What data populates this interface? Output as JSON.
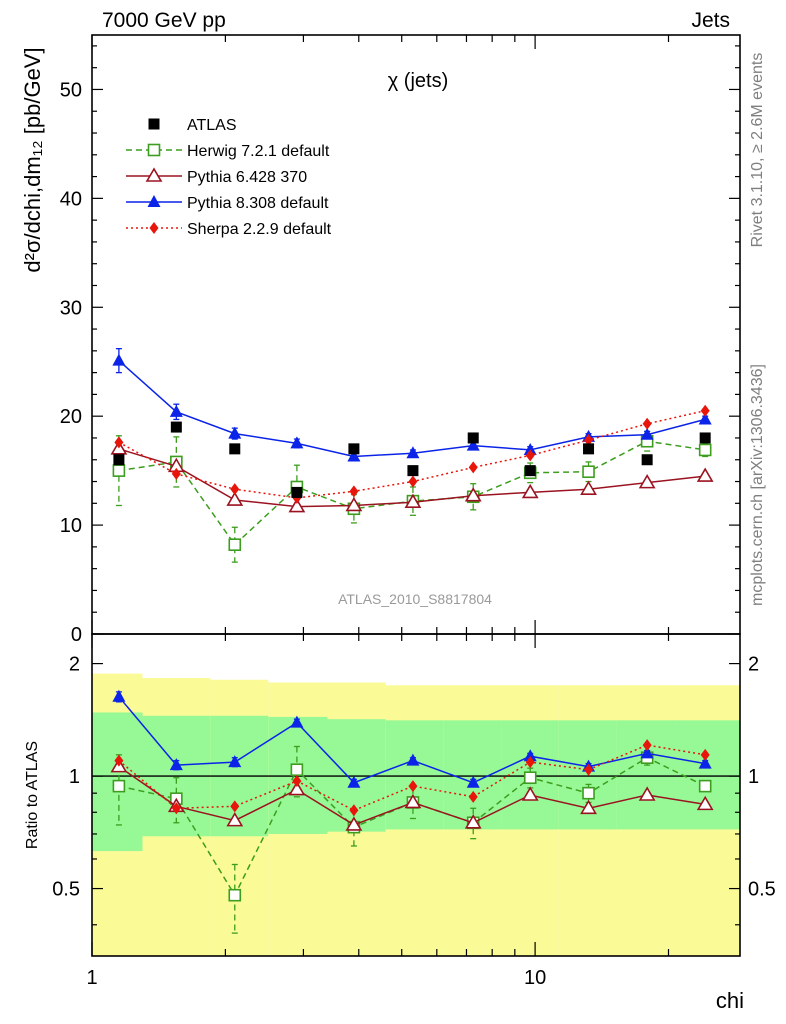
{
  "header": {
    "left": "7000 GeV pp",
    "right": "Jets"
  },
  "side_labels": {
    "rivet": "Rivet 3.1.10, ≥ 2.6M events",
    "mcplots": "mcplots.cern.ch [arXiv:1306.3436]"
  },
  "analysis_label": "ATLAS_2010_S8817804",
  "chart_data": [
    {
      "type": "scatter",
      "panel": "main",
      "title": "χ (jets)",
      "ylabel": "d²σ/dchi,dm₁₂ [pb/GeV]",
      "xscale": "log",
      "xlim": [
        1,
        29
      ],
      "ylim": [
        0,
        55
      ],
      "yticks": [
        0,
        10,
        20,
        30,
        40,
        50
      ],
      "legend_placement": "top-left",
      "x": [
        1.15,
        1.55,
        2.1,
        2.9,
        3.9,
        5.3,
        7.25,
        9.75,
        13.2,
        17.9,
        24.2
      ],
      "series": [
        {
          "name": "ATLAS",
          "style": "data",
          "color": "#000000",
          "values": [
            16,
            19,
            17,
            13,
            17,
            15,
            18,
            15,
            17,
            16,
            18
          ]
        },
        {
          "name": "Herwig 7.2.1 default",
          "style": "open-square-dashed",
          "color": "#3c9d1e",
          "values": [
            15,
            15.8,
            8.2,
            13.5,
            11.5,
            12.2,
            12.6,
            14.8,
            14.9,
            17.7,
            16.9
          ],
          "errors": [
            3.2,
            2.3,
            1.6,
            2.0,
            1.3,
            1.3,
            1.2,
            0.9,
            0.9,
            0.9,
            0.6
          ]
        },
        {
          "name": "Pythia 6.428 370",
          "style": "open-triangle-solid",
          "color": "#9b1320",
          "values": [
            17.0,
            15.4,
            12.3,
            11.7,
            11.8,
            12.1,
            12.7,
            13.0,
            13.3,
            13.9,
            14.5
          ]
        },
        {
          "name": "Pythia 8.308 default",
          "style": "filled-triangle-solid",
          "color": "#0b24e8",
          "values": [
            25.1,
            20.4,
            18.4,
            17.5,
            16.3,
            16.6,
            17.3,
            16.9,
            18.1,
            18.3,
            19.7
          ],
          "errors": [
            1.1,
            0.7,
            0.5,
            0.4,
            0.3,
            0.3,
            0.3,
            0.3,
            0.3,
            0.3,
            0.3
          ]
        },
        {
          "name": "Sherpa 2.2.9 default",
          "style": "diamond-dotted",
          "color": "#e8150b",
          "values": [
            17.6,
            14.7,
            13.3,
            12.5,
            13.1,
            14.0,
            15.3,
            16.4,
            17.8,
            19.3,
            20.5
          ]
        }
      ]
    },
    {
      "type": "scatter",
      "panel": "ratio",
      "ylabel": "Ratio to ATLAS",
      "xlabel": "chi",
      "xscale": "log",
      "xlim": [
        1,
        29
      ],
      "ylim": [
        0.33,
        2.4
      ],
      "ytick_labels": [
        "0.5",
        "1",
        "2"
      ],
      "xtick_labels": [
        "1",
        "10"
      ],
      "reference_line": 1,
      "bins": [
        {
          "x0": 1.0,
          "x1": 1.3,
          "band_inner": [
            0.63,
            1.48
          ],
          "band_outer": [
            0.33,
            1.88
          ]
        },
        {
          "x0": 1.3,
          "x1": 1.85,
          "band_inner": [
            0.69,
            1.45
          ],
          "band_outer": [
            0.33,
            1.83
          ]
        },
        {
          "x0": 1.85,
          "x1": 2.5,
          "band_inner": [
            0.69,
            1.45
          ],
          "band_outer": [
            0.33,
            1.81
          ]
        },
        {
          "x0": 2.5,
          "x1": 3.4,
          "band_inner": [
            0.7,
            1.44
          ],
          "band_outer": [
            0.33,
            1.78
          ]
        },
        {
          "x0": 3.4,
          "x1": 4.6,
          "band_inner": [
            0.71,
            1.42
          ],
          "band_outer": [
            0.33,
            1.78
          ]
        },
        {
          "x0": 4.6,
          "x1": 6.2,
          "band_inner": [
            0.72,
            1.41
          ],
          "band_outer": [
            0.33,
            1.75
          ]
        },
        {
          "x0": 6.2,
          "x1": 8.4,
          "band_inner": [
            0.72,
            1.41
          ],
          "band_outer": [
            0.33,
            1.75
          ]
        },
        {
          "x0": 8.4,
          "x1": 11.3,
          "band_inner": [
            0.72,
            1.41
          ],
          "band_outer": [
            0.33,
            1.75
          ]
        },
        {
          "x0": 11.3,
          "x1": 15.3,
          "band_inner": [
            0.72,
            1.41
          ],
          "band_outer": [
            0.33,
            1.75
          ]
        },
        {
          "x0": 15.3,
          "x1": 20.8,
          "band_inner": [
            0.72,
            1.41
          ],
          "band_outer": [
            0.33,
            1.75
          ]
        },
        {
          "x0": 20.8,
          "x1": 29.0,
          "band_inner": [
            0.72,
            1.41
          ],
          "band_outer": [
            0.33,
            1.75
          ]
        }
      ],
      "band_colors": {
        "inner": "#96f996",
        "outer": "#fafa96"
      },
      "x": [
        1.15,
        1.55,
        2.1,
        2.9,
        3.9,
        5.3,
        7.25,
        9.75,
        13.2,
        17.9,
        24.2
      ],
      "series": [
        {
          "name": "Herwig 7.2.1 default",
          "color": "#3c9d1e",
          "style": "open-square-dashed",
          "values": [
            0.94,
            0.87,
            0.48,
            1.04,
            0.73,
            0.85,
            0.75,
            0.99,
            0.9,
            1.12,
            0.94
          ],
          "errors": [
            0.2,
            0.12,
            0.1,
            0.16,
            0.08,
            0.08,
            0.07,
            0.06,
            0.05,
            0.05,
            0.03
          ]
        },
        {
          "name": "Pythia 6.428 370",
          "color": "#9b1320",
          "style": "open-triangle-solid",
          "values": [
            1.06,
            0.83,
            0.76,
            0.92,
            0.74,
            0.85,
            0.75,
            0.89,
            0.82,
            0.89,
            0.84
          ]
        },
        {
          "name": "Pythia 8.308 default",
          "color": "#0b24e8",
          "style": "filled-triangle-solid",
          "values": [
            1.63,
            1.07,
            1.09,
            1.39,
            0.96,
            1.1,
            0.96,
            1.13,
            1.06,
            1.15,
            1.08
          ],
          "errors": [
            0.05,
            0.03,
            0.03,
            0.03,
            0.02,
            0.02,
            0.02,
            0.02,
            0.02,
            0.02,
            0.02
          ]
        },
        {
          "name": "Sherpa 2.2.9 default",
          "color": "#e8150b",
          "style": "diamond-dotted",
          "values": [
            1.1,
            0.82,
            0.83,
            0.97,
            0.81,
            0.94,
            0.88,
            1.09,
            1.04,
            1.21,
            1.14
          ]
        }
      ]
    }
  ]
}
